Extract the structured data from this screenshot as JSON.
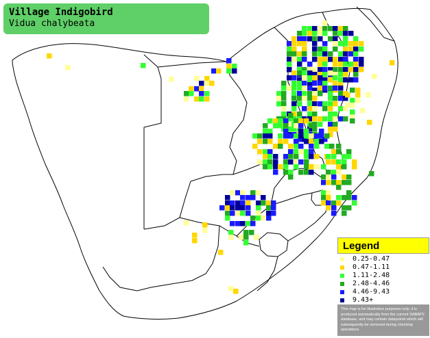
{
  "title": {
    "common_name": "Village Indigobird",
    "scientific_name": "Vidua chalybeata"
  },
  "legend": {
    "title": "Legend",
    "items": [
      {
        "label": "0.25-0.47",
        "color": "#ffff99"
      },
      {
        "label": "0.47-1.11",
        "color": "#ffd700"
      },
      {
        "label": "1.11-2.48",
        "color": "#33ff33"
      },
      {
        "label": "2.48-4.46",
        "color": "#22aa22"
      },
      {
        "label": "4.46-9.43",
        "color": "#1a1aff"
      },
      {
        "label": "9.43+",
        "color": "#000099"
      }
    ],
    "disclaimer": "This map is for illustrative purposes only; it is produced automatically from the current SABAP2 database, and may contain datapoints which will subsequently be removed during checking operations."
  },
  "colors": {
    "title_bg": "#5fcf68",
    "legend_header_bg": "#ffff00",
    "disclaimer_bg": "#999999"
  }
}
